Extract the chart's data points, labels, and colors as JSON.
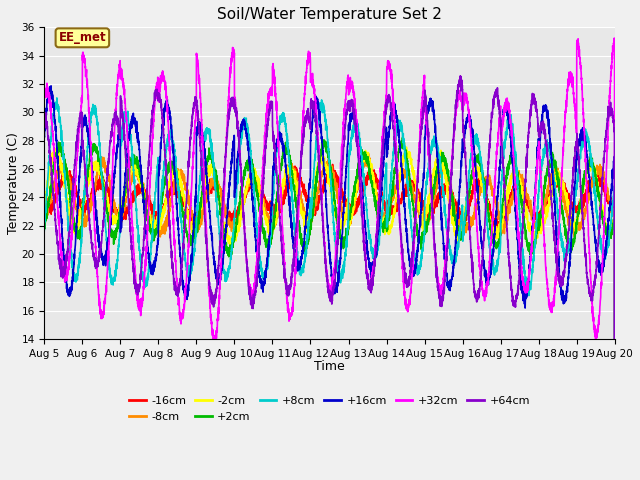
{
  "title": "Soil/Water Temperature Set 2",
  "xlabel": "Time",
  "ylabel": "Temperature (C)",
  "ylim": [
    14,
    36
  ],
  "xlim": [
    0,
    15
  ],
  "yticks": [
    14,
    16,
    18,
    20,
    22,
    24,
    26,
    28,
    30,
    32,
    34,
    36
  ],
  "xtick_labels": [
    "Aug 5",
    "Aug 6",
    "Aug 7",
    "Aug 8",
    "Aug 9",
    "Aug 10",
    "Aug 11",
    "Aug 12",
    "Aug 13",
    "Aug 14",
    "Aug 15",
    "Aug 16",
    "Aug 17",
    "Aug 18",
    "Aug 19",
    "Aug 20"
  ],
  "annotation_text": "EE_met",
  "annotation_color": "#8B0000",
  "annotation_bg": "#FFFF99",
  "annotation_edge": "#8B6914",
  "fig_bg": "#F0F0F0",
  "plot_bg": "#E8E8E8",
  "grid_color": "#FFFFFF",
  "series": [
    {
      "label": "-16cm",
      "color": "#FF0000",
      "amplitude": 1.3,
      "mean": 24.0,
      "phase_lag": 0.05,
      "lw": 1.2
    },
    {
      "label": "-8cm",
      "color": "#FF8C00",
      "amplitude": 1.8,
      "mean": 24.0,
      "phase_lag": 0.1,
      "lw": 1.2
    },
    {
      "label": "-2cm",
      "color": "#FFFF00",
      "amplitude": 2.2,
      "mean": 24.0,
      "phase_lag": 0.15,
      "lw": 1.2
    },
    {
      "label": "+2cm",
      "color": "#00BB00",
      "amplitude": 3.0,
      "mean": 24.0,
      "phase_lag": 0.2,
      "lw": 1.2
    },
    {
      "label": "+8cm",
      "color": "#00CCCC",
      "amplitude": 5.0,
      "mean": 24.0,
      "phase_lag": 0.3,
      "lw": 1.2
    },
    {
      "label": "+16cm",
      "color": "#0000CC",
      "amplitude": 6.0,
      "mean": 24.0,
      "phase_lag": 0.4,
      "lw": 1.2
    },
    {
      "label": "+32cm",
      "color": "#FF00FF",
      "amplitude": 8.5,
      "mean": 24.5,
      "phase_lag": 0.55,
      "lw": 1.2
    },
    {
      "label": "+64cm",
      "color": "#8800CC",
      "amplitude": 6.5,
      "mean": 24.0,
      "phase_lag": 0.6,
      "lw": 1.2
    }
  ]
}
